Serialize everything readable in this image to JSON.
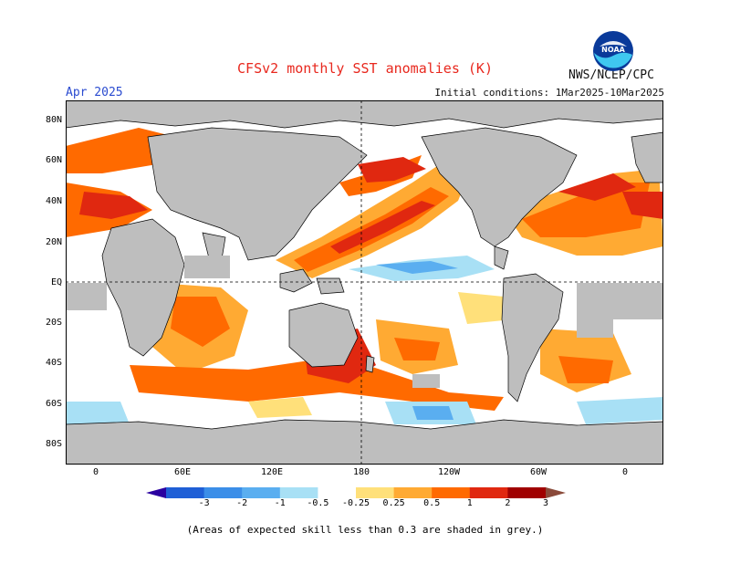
{
  "header": {
    "title": "CFSv2 monthly SST anomalies (K)",
    "valid_month": "Apr 2025",
    "initial_conditions": "Initial conditions: 1Mar2025-10Mar2025",
    "agency": "NWS/NCEP/CPC",
    "logo_text": "NOAA"
  },
  "map": {
    "lat_labels": [
      "80N",
      "60N",
      "40N",
      "20N",
      "EQ",
      "20S",
      "40S",
      "60S",
      "80S"
    ],
    "lon_labels": [
      "0",
      "60E",
      "120E",
      "180",
      "120W",
      "60W",
      "0"
    ],
    "colors": {
      "ocean": "#ffffff",
      "land": "#bebebe",
      "low_skill": "#bebebe",
      "coast": "#000000"
    }
  },
  "colorbar": {
    "labels": [
      "-3",
      "-2",
      "-1",
      "-0.5",
      "-0.25",
      "0.25",
      "0.5",
      "1",
      "2",
      "3"
    ],
    "colors": [
      "#2a00a0",
      "#1f5fd6",
      "#3b8ee8",
      "#5aaef0",
      "#a8e0f5",
      "#ffffff",
      "#ffe07a",
      "#ffaa33",
      "#ff6a00",
      "#e02810",
      "#a00000",
      "#8a4a3a"
    ]
  },
  "footnote": "(Areas of expected skill less than 0.3 are shaded in grey.)"
}
